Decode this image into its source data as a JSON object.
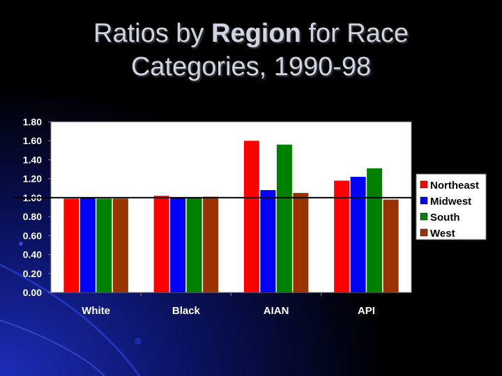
{
  "slide": {
    "title_part1": "Ratios by ",
    "title_bold": "Region",
    "title_part2": " for Race",
    "title_line2": "Categories, 1990-98"
  },
  "chart_data": {
    "type": "bar",
    "title": "",
    "xlabel": "",
    "ylabel": "",
    "categories": [
      "White",
      "Black",
      "AIAN",
      "API"
    ],
    "series": [
      {
        "name": "Northeast",
        "color": "#ff0000",
        "values": [
          0.99,
          1.02,
          1.6,
          1.18
        ]
      },
      {
        "name": "Midwest",
        "color": "#0000ff",
        "values": [
          1.0,
          1.0,
          1.08,
          1.22
        ]
      },
      {
        "name": "South",
        "color": "#008000",
        "values": [
          0.99,
          1.0,
          1.56,
          1.31
        ]
      },
      {
        "name": "West",
        "color": "#993300",
        "values": [
          0.99,
          1.01,
          1.05,
          0.98
        ]
      }
    ],
    "ylim": [
      0,
      1.8
    ],
    "yticks": [
      "0.00",
      "0.20",
      "0.40",
      "0.60",
      "0.80",
      "1.00",
      "1.20",
      "1.40",
      "1.60",
      "1.80"
    ],
    "reference_line": 1.0,
    "grid": false,
    "legend_position": "right",
    "plot_background": "#ffffff",
    "text_color": "#ffffff"
  }
}
